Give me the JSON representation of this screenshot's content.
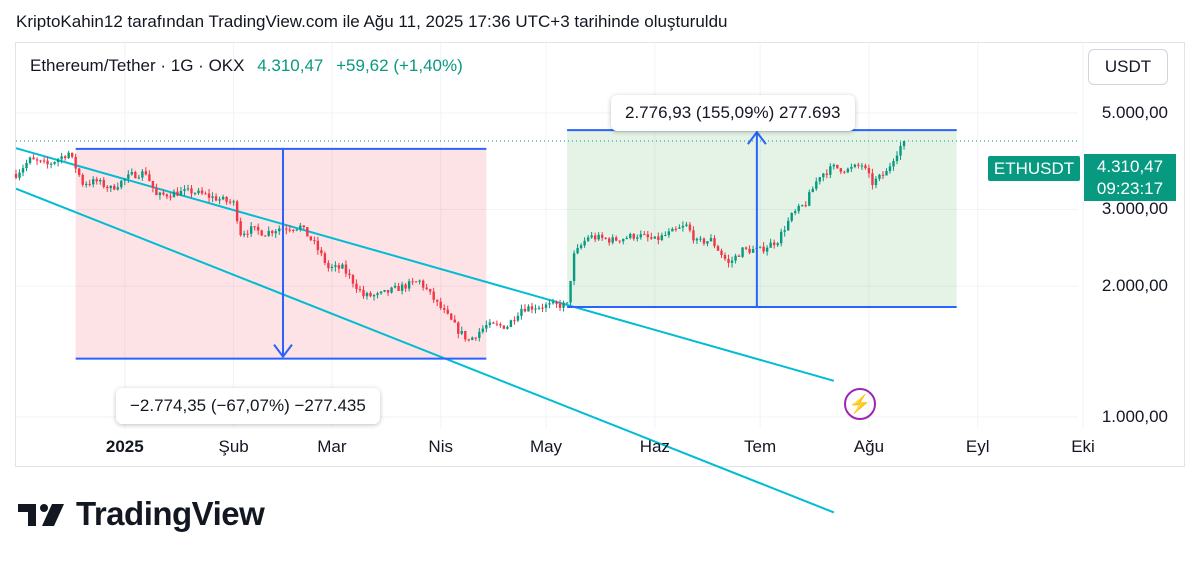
{
  "caption": "KriptoKahin12 tarafından TradingView.com ile Ağu 11, 2025 17:36 UTC+3 tarihinde oluşturuldu",
  "legend": {
    "symbol": "Ethereum/Tether · 1G · OKX",
    "price": "4.310,47",
    "change": "+59,62 (+1,40%)"
  },
  "currency_button": "USDT",
  "price_tag": {
    "name": "ETHUSDT",
    "price": "4.310,47",
    "countdown": "09:23:17"
  },
  "callouts": {
    "up": "2.776,93 (155,09%) 277.693",
    "down": "−2.774,35 (−67,07%) −277.435"
  },
  "brand": "TradingView",
  "colors": {
    "up": "#089981",
    "down": "#f23645",
    "measure": "#2962ff",
    "channel": "#00bcd4",
    "tag": "#089981"
  },
  "chart_data": {
    "type": "candlestick",
    "symbol": "Ethereum/Tether",
    "interval": "1G",
    "exchange": "OKX",
    "y_ticks": [
      {
        "value": 5000,
        "label": "5.000,00"
      },
      {
        "value": 3000,
        "label": "3.000,00"
      },
      {
        "value": 2000,
        "label": "2.000,00"
      },
      {
        "value": 1000,
        "label": "1.000,00"
      }
    ],
    "y_scale": "log",
    "x_ticks": [
      {
        "date": "2025-01-01",
        "label": "2025",
        "bold": true
      },
      {
        "date": "2025-02-01",
        "label": "Şub"
      },
      {
        "date": "2025-03-01",
        "label": "Mar"
      },
      {
        "date": "2025-04-01",
        "label": "Nis"
      },
      {
        "date": "2025-05-01",
        "label": "May"
      },
      {
        "date": "2025-06-01",
        "label": "Haz"
      },
      {
        "date": "2025-07-01",
        "label": "Tem"
      },
      {
        "date": "2025-08-01",
        "label": "Ağu"
      },
      {
        "date": "2025-09-01",
        "label": "Eyl"
      },
      {
        "date": "2025-10-01",
        "label": "Eki"
      }
    ],
    "x_start": "2024-12-01",
    "close_path": [
      [
        "2024-12-01",
        3620
      ],
      [
        "2024-12-05",
        3900
      ],
      [
        "2024-12-10",
        3800
      ],
      [
        "2024-12-16",
        4050
      ],
      [
        "2024-12-20",
        3450
      ],
      [
        "2024-12-24",
        3480
      ],
      [
        "2024-12-28",
        3350
      ],
      [
        "2025-01-03",
        3600
      ],
      [
        "2025-01-07",
        3650
      ],
      [
        "2025-01-10",
        3220
      ],
      [
        "2025-01-16",
        3280
      ],
      [
        "2025-01-20",
        3300
      ],
      [
        "2025-01-26",
        3200
      ],
      [
        "2025-02-01",
        3100
      ],
      [
        "2025-02-03",
        2650
      ],
      [
        "2025-02-06",
        2700
      ],
      [
        "2025-02-10",
        2650
      ],
      [
        "2025-02-14",
        2720
      ],
      [
        "2025-02-20",
        2740
      ],
      [
        "2025-02-24",
        2500
      ],
      [
        "2025-02-28",
        2200
      ],
      [
        "2025-03-04",
        2200
      ],
      [
        "2025-03-10",
        1900
      ],
      [
        "2025-03-14",
        1900
      ],
      [
        "2025-03-20",
        1980
      ],
      [
        "2025-03-26",
        2050
      ],
      [
        "2025-03-31",
        1820
      ],
      [
        "2025-04-06",
        1580
      ],
      [
        "2025-04-09",
        1500
      ],
      [
        "2025-04-14",
        1620
      ],
      [
        "2025-04-20",
        1620
      ],
      [
        "2025-04-24",
        1780
      ],
      [
        "2025-04-30",
        1800
      ],
      [
        "2025-05-07",
        1810
      ],
      [
        "2025-05-09",
        2350
      ],
      [
        "2025-05-13",
        2600
      ],
      [
        "2025-05-20",
        2550
      ],
      [
        "2025-05-27",
        2620
      ],
      [
        "2025-06-01",
        2550
      ],
      [
        "2025-06-10",
        2750
      ],
      [
        "2025-06-13",
        2520
      ],
      [
        "2025-06-17",
        2550
      ],
      [
        "2025-06-22",
        2250
      ],
      [
        "2025-06-26",
        2420
      ],
      [
        "2025-07-01",
        2420
      ],
      [
        "2025-07-06",
        2550
      ],
      [
        "2025-07-10",
        2900
      ],
      [
        "2025-07-14",
        3100
      ],
      [
        "2025-07-18",
        3600
      ],
      [
        "2025-07-22",
        3750
      ],
      [
        "2025-07-26",
        3700
      ],
      [
        "2025-07-30",
        3800
      ],
      [
        "2025-08-02",
        3450
      ],
      [
        "2025-08-06",
        3650
      ],
      [
        "2025-08-08",
        3950
      ],
      [
        "2025-08-11",
        4310
      ]
    ],
    "last_price": 4310.47,
    "change": 59.62,
    "change_pct": 1.4,
    "annotations": {
      "channel": {
        "upper": [
          [
            "2024-12-01",
            4150
          ],
          [
            "2025-05-07",
            1810
          ]
        ],
        "lower": [
          [
            "2024-12-01",
            3350
          ],
          [
            "2025-04-14",
            1250
          ]
        ],
        "end": "2025-07-22"
      },
      "down_measure": {
        "from_date": "2024-12-18",
        "to_date": "2025-04-14",
        "from": 4136,
        "to": 1362,
        "label": "−2.774,35 (−67,07%) −277.435"
      },
      "up_measure": {
        "from_date": "2025-05-07",
        "to_date": "2025-08-26",
        "from": 1790,
        "to": 4567,
        "label": "2.776,93 (155,09%) 277.693"
      }
    }
  }
}
